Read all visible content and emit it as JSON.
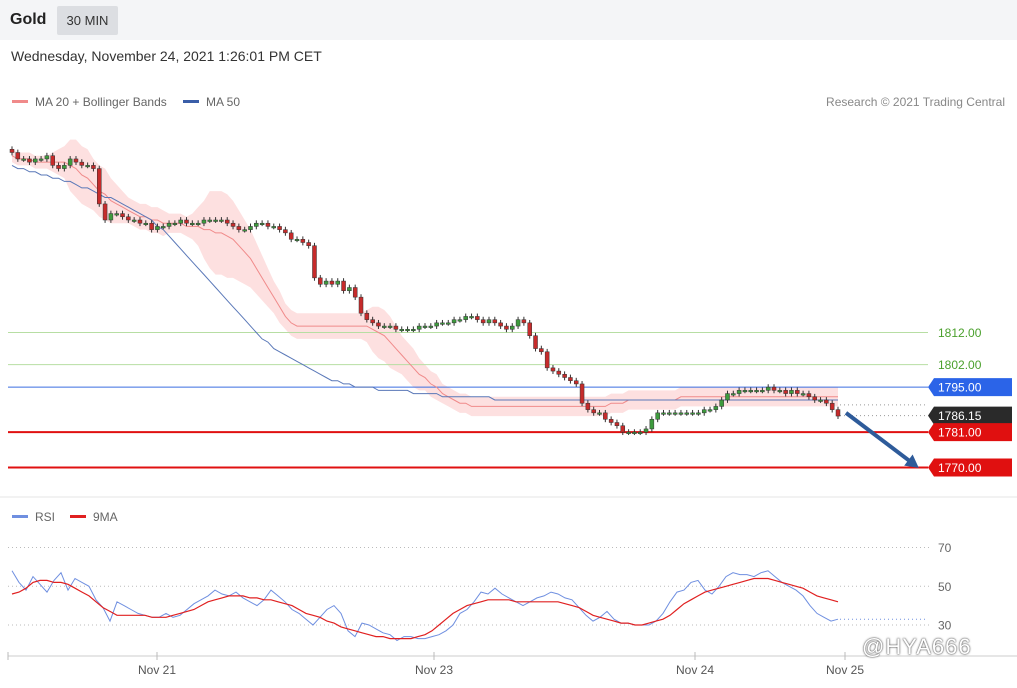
{
  "header": {
    "instrument": "Gold",
    "timeframe": "30 MIN"
  },
  "timestamp": "Wednesday, November 24, 2021 1:26:01 PM CET",
  "legend": [
    {
      "label": "MA 20 + Bollinger Bands",
      "color": "#f08a8a"
    },
    {
      "label": "MA 50",
      "color": "#3a5ea8"
    }
  ],
  "credit": "Research © 2021 Trading Central",
  "rsi_legend": [
    {
      "label": "RSI",
      "color": "#6f8fe0"
    },
    {
      "label": "9MA",
      "color": "#e02020"
    }
  ],
  "watermark": "@HYA666",
  "chart_data": [
    {
      "type": "candlestick",
      "ylim": [
        1763,
        1875
      ],
      "xlabels": [
        "Nov 21",
        "Nov 23",
        "Nov 24",
        "Nov 25"
      ],
      "levels": [
        {
          "value": 1812.0,
          "label": "1812.00",
          "line_color": "#b7dea3",
          "label_color": "#4aa02c",
          "style": "text"
        },
        {
          "value": 1802.0,
          "label": "1802.00",
          "line_color": "#b7dea3",
          "label_color": "#4aa02c",
          "style": "text"
        },
        {
          "value": 1795.0,
          "label": "1795.00",
          "line_color": "#3a6ee0",
          "label_color": "#2b64e8",
          "style": "box"
        },
        {
          "value": 1786.15,
          "label": "1786.15",
          "line_color": "#888888",
          "label_color": "#2a2a2a",
          "style": "box"
        },
        {
          "value": 1781.0,
          "label": "1781.00",
          "line_color": "#e01010",
          "label_color": "#e01010",
          "style": "box"
        },
        {
          "value": 1770.0,
          "label": "1770.00",
          "line_color": "#e01010",
          "label_color": "#e01010",
          "style": "box"
        }
      ],
      "forecast": {
        "from": 1787,
        "to": 1771
      },
      "close": [
        1868,
        1866,
        1866,
        1865,
        1866,
        1866,
        1867,
        1864,
        1863,
        1864,
        1866,
        1865,
        1864,
        1864,
        1863,
        1852,
        1847,
        1849,
        1849,
        1848,
        1847,
        1847,
        1846,
        1846,
        1844,
        1845,
        1845,
        1846,
        1846,
        1847,
        1846,
        1846,
        1846,
        1847,
        1847,
        1847,
        1847,
        1846,
        1845,
        1844,
        1844,
        1845,
        1846,
        1846,
        1845,
        1845,
        1844,
        1843,
        1841,
        1841,
        1840,
        1839,
        1829,
        1827,
        1828,
        1827,
        1828,
        1825,
        1826,
        1823,
        1818,
        1816,
        1815,
        1814,
        1814,
        1814,
        1813,
        1813,
        1813,
        1813,
        1814,
        1814,
        1814,
        1815,
        1815,
        1815,
        1816,
        1816,
        1817,
        1817,
        1816,
        1815,
        1816,
        1815,
        1814,
        1813,
        1814,
        1816,
        1815,
        1811,
        1807,
        1806,
        1801,
        1800,
        1799,
        1798,
        1797,
        1796,
        1790,
        1788,
        1787,
        1787,
        1785,
        1784,
        1783,
        1781,
        1781,
        1781,
        1781,
        1782,
        1785,
        1787,
        1787,
        1787,
        1787,
        1787,
        1787,
        1787,
        1787,
        1788,
        1788,
        1789,
        1791,
        1793,
        1793,
        1794,
        1794,
        1794,
        1794,
        1794,
        1795,
        1794,
        1794,
        1793,
        1794,
        1793,
        1793,
        1792,
        1791,
        1791,
        1790,
        1788,
        1786
      ],
      "ma20": [
        1867,
        1866,
        1866,
        1866,
        1865,
        1865,
        1865,
        1865,
        1865,
        1865,
        1864,
        1863,
        1861,
        1860,
        1858,
        1856,
        1855,
        1853,
        1852,
        1851,
        1850,
        1849,
        1848,
        1848,
        1847,
        1847,
        1846,
        1846,
        1846,
        1846,
        1845,
        1845,
        1845,
        1844,
        1844,
        1843,
        1843,
        1842,
        1841,
        1839,
        1837,
        1835,
        1832,
        1829,
        1826,
        1823,
        1820,
        1817,
        1815,
        1814,
        1814,
        1814,
        1814,
        1814,
        1814,
        1814,
        1814,
        1814,
        1814,
        1814,
        1814,
        1814,
        1813,
        1812,
        1811,
        1809,
        1807,
        1805,
        1803,
        1801,
        1799,
        1798,
        1796,
        1795,
        1793,
        1792,
        1791,
        1790,
        1790,
        1789,
        1789,
        1789,
        1789,
        1789,
        1789,
        1789,
        1789,
        1789,
        1789,
        1789,
        1789,
        1789,
        1789,
        1789,
        1789,
        1789,
        1789,
        1789,
        1789,
        1789,
        1789,
        1789,
        1789,
        1790,
        1790,
        1790,
        1791,
        1791,
        1791,
        1791,
        1791,
        1791,
        1791,
        1791,
        1791,
        1792,
        1792,
        1792,
        1792,
        1792,
        1792,
        1792,
        1792,
        1792,
        1792,
        1792,
        1792,
        1792,
        1792,
        1792,
        1792,
        1792,
        1792,
        1792,
        1792,
        1792,
        1792,
        1792,
        1792,
        1792,
        1792,
        1792,
        1792
      ],
      "bb_width": [
        2,
        2,
        2,
        2,
        2,
        2,
        2,
        3,
        4,
        5,
        8,
        9,
        9,
        9,
        8,
        8,
        8,
        7,
        6,
        5,
        4,
        4,
        4,
        4,
        4,
        4,
        4,
        3,
        3,
        3,
        3,
        4,
        6,
        9,
        12,
        13,
        13,
        13,
        12,
        11,
        10,
        9,
        8,
        7,
        6,
        5,
        5,
        4,
        4,
        4,
        4,
        4,
        4,
        4,
        4,
        4,
        4,
        4,
        4,
        4,
        4,
        5,
        7,
        8,
        8,
        8,
        7,
        6,
        6,
        6,
        5,
        4,
        4,
        4,
        3,
        3,
        3,
        3,
        3,
        3,
        3,
        3,
        3,
        3,
        3,
        3,
        3,
        3,
        3,
        3,
        3,
        3,
        3,
        3,
        3,
        3,
        3,
        3,
        3,
        3,
        3,
        3,
        3,
        3,
        3,
        3,
        3,
        3,
        3,
        3,
        3,
        3,
        3,
        3,
        3,
        3,
        3,
        3,
        3,
        3,
        3,
        3,
        3,
        3,
        3,
        3,
        3,
        3,
        3,
        3,
        3,
        3,
        3,
        3,
        3,
        3,
        3,
        3,
        3,
        3,
        3,
        3,
        3
      ],
      "ma50": [
        1864,
        1863,
        1863,
        1862,
        1862,
        1861,
        1861,
        1860,
        1860,
        1859,
        1859,
        1858,
        1857,
        1857,
        1856,
        1855,
        1854,
        1854,
        1853,
        1852,
        1851,
        1850,
        1849,
        1848,
        1847,
        1845,
        1844,
        1842,
        1840,
        1838,
        1836,
        1834,
        1832,
        1830,
        1828,
        1826,
        1824,
        1822,
        1820,
        1818,
        1816,
        1814,
        1812,
        1810,
        1809,
        1807,
        1806,
        1805,
        1804,
        1803,
        1802,
        1801,
        1800,
        1799,
        1798,
        1797,
        1797,
        1796,
        1796,
        1795,
        1795,
        1795,
        1795,
        1794,
        1794,
        1794,
        1794,
        1794,
        1794,
        1793,
        1793,
        1793,
        1793,
        1793,
        1792,
        1792,
        1792,
        1792,
        1792,
        1792,
        1792,
        1792,
        1792,
        1791,
        1791,
        1791,
        1791,
        1791,
        1791,
        1791,
        1791,
        1791,
        1791,
        1791,
        1791,
        1791,
        1791,
        1791,
        1791,
        1791,
        1791,
        1791,
        1791,
        1791,
        1791,
        1791,
        1791,
        1791,
        1791,
        1791,
        1791,
        1791,
        1791,
        1791,
        1791,
        1791,
        1791,
        1791,
        1791,
        1791,
        1791,
        1791,
        1791,
        1791,
        1791,
        1791,
        1791,
        1791,
        1791,
        1791,
        1791,
        1791,
        1791,
        1791,
        1791,
        1791,
        1791,
        1791,
        1791,
        1791,
        1791,
        1791,
        1791
      ]
    },
    {
      "type": "line",
      "ylim": [
        14,
        78
      ],
      "gridlines": [
        70,
        50,
        30
      ],
      "ticks": [
        "70",
        "50",
        "30"
      ],
      "rsi_level": 33,
      "rsi": [
        58,
        52,
        48,
        55,
        51,
        47,
        53,
        57,
        48,
        54,
        52,
        50,
        43,
        39,
        32,
        42,
        40,
        38,
        36,
        35,
        34,
        34,
        36,
        34,
        35,
        38,
        41,
        43,
        45,
        48,
        46,
        45,
        47,
        44,
        42,
        40,
        43,
        48,
        45,
        42,
        38,
        36,
        33,
        30,
        34,
        38,
        40,
        36,
        27,
        24,
        31,
        30,
        28,
        26,
        25,
        22,
        24,
        24,
        23,
        23,
        24,
        25,
        27,
        30,
        36,
        38,
        42,
        47,
        46,
        49,
        46,
        44,
        42,
        40,
        42,
        44,
        45,
        47,
        46,
        44,
        43,
        39,
        35,
        32,
        34,
        37,
        33,
        31,
        31,
        30,
        30,
        30,
        32,
        36,
        42,
        47,
        48,
        52,
        53,
        48,
        46,
        50,
        55,
        57,
        56,
        56,
        55,
        57,
        58,
        55,
        52,
        50,
        48,
        45,
        40,
        36,
        34,
        32,
        33
      ],
      "ma9": [
        46,
        47,
        49,
        52,
        53,
        53,
        52,
        52,
        51,
        49,
        47,
        45,
        42,
        39,
        37,
        35,
        35,
        35,
        35,
        35,
        34,
        34,
        34,
        35,
        36,
        37,
        38,
        40,
        42,
        43,
        44,
        45,
        45,
        45,
        44,
        44,
        43,
        43,
        42,
        41,
        40,
        38,
        36,
        35,
        34,
        32,
        31,
        29,
        28,
        27,
        26,
        25,
        24,
        24,
        23,
        23,
        23,
        23,
        24,
        25,
        27,
        30,
        33,
        36,
        38,
        40,
        41,
        42,
        43,
        43,
        43,
        43,
        42,
        42,
        42,
        42,
        42,
        42,
        42,
        41,
        40,
        39,
        37,
        35,
        34,
        33,
        32,
        31,
        31,
        30,
        30,
        31,
        32,
        33,
        35,
        38,
        41,
        43,
        45,
        47,
        48,
        49,
        50,
        51,
        52,
        53,
        54,
        54,
        54,
        53,
        52,
        51,
        50,
        49,
        47,
        45,
        44,
        43,
        42
      ]
    }
  ]
}
